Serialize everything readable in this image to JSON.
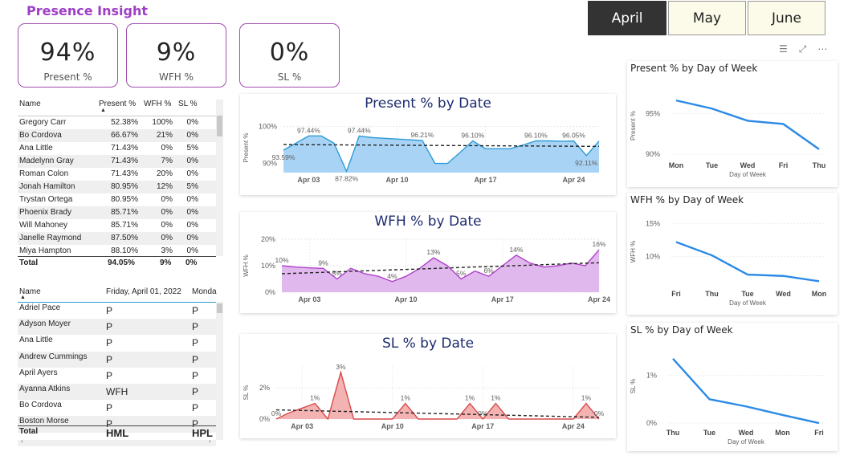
{
  "title": "Presence Insight",
  "kpis": [
    {
      "value": "94%",
      "label": "Present %"
    },
    {
      "value": "9%",
      "label": "WFH %"
    },
    {
      "value": "0%",
      "label": "SL %"
    }
  ],
  "months": [
    "April",
    "May",
    "June"
  ],
  "active_month": "April",
  "toolbar": {
    "filter_icon": "filter-icon",
    "focus_icon": "focus-mode-icon",
    "more_icon": "more-options-icon"
  },
  "table1": {
    "headers": [
      "Name",
      "Present %",
      "WFH %",
      "SL %"
    ],
    "rows": [
      [
        "Gregory Carr",
        "52.38%",
        "100%",
        "0%"
      ],
      [
        "Bo Cordova",
        "66.67%",
        "21%",
        "0%"
      ],
      [
        "Ana Little",
        "71.43%",
        "0%",
        "5%"
      ],
      [
        "Madelynn Gray",
        "71.43%",
        "7%",
        "0%"
      ],
      [
        "Roman Colon",
        "71.43%",
        "20%",
        "0%"
      ],
      [
        "Jonah Hamilton",
        "80.95%",
        "12%",
        "5%"
      ],
      [
        "Trystan Ortega",
        "80.95%",
        "0%",
        "0%"
      ],
      [
        "Phoenix Brady",
        "85.71%",
        "0%",
        "0%"
      ],
      [
        "Will Mahoney",
        "85.71%",
        "0%",
        "0%"
      ],
      [
        "Janelle Raymond",
        "87.50%",
        "0%",
        "0%"
      ],
      [
        "Miya Hampton",
        "88.10%",
        "3%",
        "0%"
      ]
    ],
    "total": [
      "Total",
      "94.05%",
      "9%",
      "0%"
    ]
  },
  "table2": {
    "headers": [
      "Name",
      "Friday, April 01, 2022",
      "Monda"
    ],
    "rows": [
      [
        "Adriel Pace",
        "P",
        "P"
      ],
      [
        "Adyson Moyer",
        "P",
        "P"
      ],
      [
        "Ana Little",
        "P",
        "P"
      ],
      [
        "Andrew Cummings",
        "P",
        "P"
      ],
      [
        "April Ayers",
        "P",
        "P"
      ],
      [
        "Ayanna Atkins",
        "WFH",
        "P"
      ],
      [
        "Bo Cordova",
        "P",
        "P"
      ],
      [
        "Boston Morse",
        "P",
        "P"
      ]
    ],
    "total": [
      "Total",
      "HML",
      "HPL"
    ]
  },
  "chart_data": [
    {
      "type": "area",
      "title": "Present % by Date",
      "ylabel": "Present %",
      "xlabel": "",
      "x_ticks": [
        "Apr 03",
        "Apr 10",
        "Apr 17",
        "Apr 24"
      ],
      "ylim": [
        87.5,
        101
      ],
      "y_ticks": [
        "90%",
        "100%"
      ],
      "trend_line": true,
      "color": "#2e9bd6",
      "fill": "#a9d3f5",
      "points": [
        {
          "x": 1,
          "y": 93.59,
          "label": "93.59%"
        },
        {
          "x": 2,
          "y": 95.5
        },
        {
          "x": 3,
          "y": 97.44,
          "label": "97.44%"
        },
        {
          "x": 4,
          "y": 97.44
        },
        {
          "x": 5,
          "y": 95.5
        },
        {
          "x": 6,
          "y": 87.82,
          "label": "87.82%"
        },
        {
          "x": 7,
          "y": 97.44,
          "label": "97.44%"
        },
        {
          "x": 8,
          "y": 97.0
        },
        {
          "x": 9,
          "y": 96.8
        },
        {
          "x": 10,
          "y": 96.6
        },
        {
          "x": 11,
          "y": 96.4
        },
        {
          "x": 12,
          "y": 96.21,
          "label": "96.21%"
        },
        {
          "x": 13,
          "y": 90.0
        },
        {
          "x": 14,
          "y": 90.0
        },
        {
          "x": 15,
          "y": 93.0
        },
        {
          "x": 16,
          "y": 96.1,
          "label": "96.10%"
        },
        {
          "x": 17,
          "y": 94.0
        },
        {
          "x": 18,
          "y": 94.0
        },
        {
          "x": 19,
          "y": 94.0
        },
        {
          "x": 20,
          "y": 95.0
        },
        {
          "x": 21,
          "y": 96.1,
          "label": "96.10%"
        },
        {
          "x": 22,
          "y": 96.1
        },
        {
          "x": 23,
          "y": 96.0
        },
        {
          "x": 24,
          "y": 96.05,
          "label": "96.05%"
        },
        {
          "x": 25,
          "y": 92.11,
          "label": "92.11%"
        },
        {
          "x": 26,
          "y": 96.05
        }
      ]
    },
    {
      "type": "area",
      "title": "WFH % by Date",
      "ylabel": "WFH %",
      "xlabel": "",
      "x_ticks": [
        "Apr 03",
        "Apr 10",
        "Apr 17",
        "Apr 24"
      ],
      "ylim": [
        0,
        20
      ],
      "y_ticks": [
        "0%",
        "10%",
        "20%"
      ],
      "trend_line": true,
      "color": "#b040c8",
      "fill": "#e0b8ee",
      "points": [
        {
          "x": 1,
          "y": 10,
          "label": "10%"
        },
        {
          "x": 2,
          "y": 9.5
        },
        {
          "x": 3,
          "y": 9.2
        },
        {
          "x": 4,
          "y": 9,
          "label": "9%"
        },
        {
          "x": 5,
          "y": 5,
          "label": "5%"
        },
        {
          "x": 6,
          "y": 9
        },
        {
          "x": 7,
          "y": 7
        },
        {
          "x": 8,
          "y": 6
        },
        {
          "x": 9,
          "y": 4,
          "label": "4%"
        },
        {
          "x": 10,
          "y": 6
        },
        {
          "x": 11,
          "y": 9
        },
        {
          "x": 12,
          "y": 13,
          "label": "13%"
        },
        {
          "x": 13,
          "y": 10
        },
        {
          "x": 14,
          "y": 5,
          "label": "5%"
        },
        {
          "x": 15,
          "y": 8
        },
        {
          "x": 16,
          "y": 6,
          "label": "6%"
        },
        {
          "x": 17,
          "y": 10
        },
        {
          "x": 18,
          "y": 14,
          "label": "14%"
        },
        {
          "x": 19,
          "y": 11
        },
        {
          "x": 20,
          "y": 9.5
        },
        {
          "x": 21,
          "y": 10
        },
        {
          "x": 22,
          "y": 11
        },
        {
          "x": 23,
          "y": 10
        },
        {
          "x": 24,
          "y": 16,
          "label": "16%"
        }
      ]
    },
    {
      "type": "area",
      "title": "SL % by Date",
      "ylabel": "SL %",
      "xlabel": "",
      "x_ticks": [
        "Apr 03",
        "Apr 10",
        "Apr 17",
        "Apr 24"
      ],
      "ylim": [
        0,
        3.4
      ],
      "y_ticks": [
        "0%",
        "2%"
      ],
      "trend_line": true,
      "color": "#d94a4a",
      "fill": "#f4b3b3",
      "points": [
        {
          "x": 1,
          "y": 0,
          "label": "0%"
        },
        {
          "x": 2,
          "y": 0.4
        },
        {
          "x": 3,
          "y": 0.7
        },
        {
          "x": 4,
          "y": 1,
          "label": "1%"
        },
        {
          "x": 5,
          "y": 0
        },
        {
          "x": 6,
          "y": 3,
          "label": "3%"
        },
        {
          "x": 7,
          "y": 0
        },
        {
          "x": 8,
          "y": 0
        },
        {
          "x": 9,
          "y": 0
        },
        {
          "x": 10,
          "y": 0
        },
        {
          "x": 11,
          "y": 1,
          "label": "1%"
        },
        {
          "x": 12,
          "y": 0
        },
        {
          "x": 13,
          "y": 0
        },
        {
          "x": 14,
          "y": 0
        },
        {
          "x": 15,
          "y": 0
        },
        {
          "x": 16,
          "y": 1,
          "label": "1%"
        },
        {
          "x": 17,
          "y": 0,
          "label": "0%"
        },
        {
          "x": 18,
          "y": 1,
          "label": "1%"
        },
        {
          "x": 19,
          "y": 0
        },
        {
          "x": 20,
          "y": 0
        },
        {
          "x": 21,
          "y": 0
        },
        {
          "x": 22,
          "y": 0
        },
        {
          "x": 23,
          "y": 0
        },
        {
          "x": 24,
          "y": 0
        },
        {
          "x": 25,
          "y": 1,
          "label": "1%"
        },
        {
          "x": 26,
          "y": 0,
          "label": "0%"
        }
      ]
    },
    {
      "type": "line",
      "title": "Present % by Day of Week",
      "ylabel": "Present %",
      "xlabel": "Day of Week",
      "categories": [
        "Mon",
        "Tue",
        "Wed",
        "Fri",
        "Thu"
      ],
      "values": [
        96.6,
        95.6,
        94.1,
        93.7,
        90.6
      ],
      "ylim": [
        89.5,
        97.5
      ],
      "y_ticks": [
        {
          "v": 90,
          "label": "90%"
        },
        {
          "v": 95,
          "label": "95%"
        }
      ],
      "color": "#2b8ae6"
    },
    {
      "type": "line",
      "title": "WFH % by Day of Week",
      "ylabel": "WFH %",
      "xlabel": "Day of Week",
      "categories": [
        "Fri",
        "Thu",
        "Tue",
        "Wed",
        "Mon"
      ],
      "values": [
        12.2,
        10.2,
        7.3,
        7.1,
        6.3
      ],
      "ylim": [
        5.5,
        16
      ],
      "y_ticks": [
        {
          "v": 10,
          "label": "10%"
        },
        {
          "v": 15,
          "label": "15%"
        }
      ],
      "color": "#2b8ae6"
    },
    {
      "type": "line",
      "title": "SL % by Day of Week",
      "ylabel": "SL %",
      "xlabel": "Day of Week",
      "categories": [
        "Thu",
        "Tue",
        "Wed",
        "Mon",
        "Fri"
      ],
      "values": [
        1.35,
        0.5,
        0.35,
        0.17,
        0.0
      ],
      "ylim": [
        -0.05,
        1.6
      ],
      "y_ticks": [
        {
          "v": 0,
          "label": "0%"
        },
        {
          "v": 1,
          "label": "1%"
        }
      ],
      "color": "#2b8ae6"
    }
  ]
}
